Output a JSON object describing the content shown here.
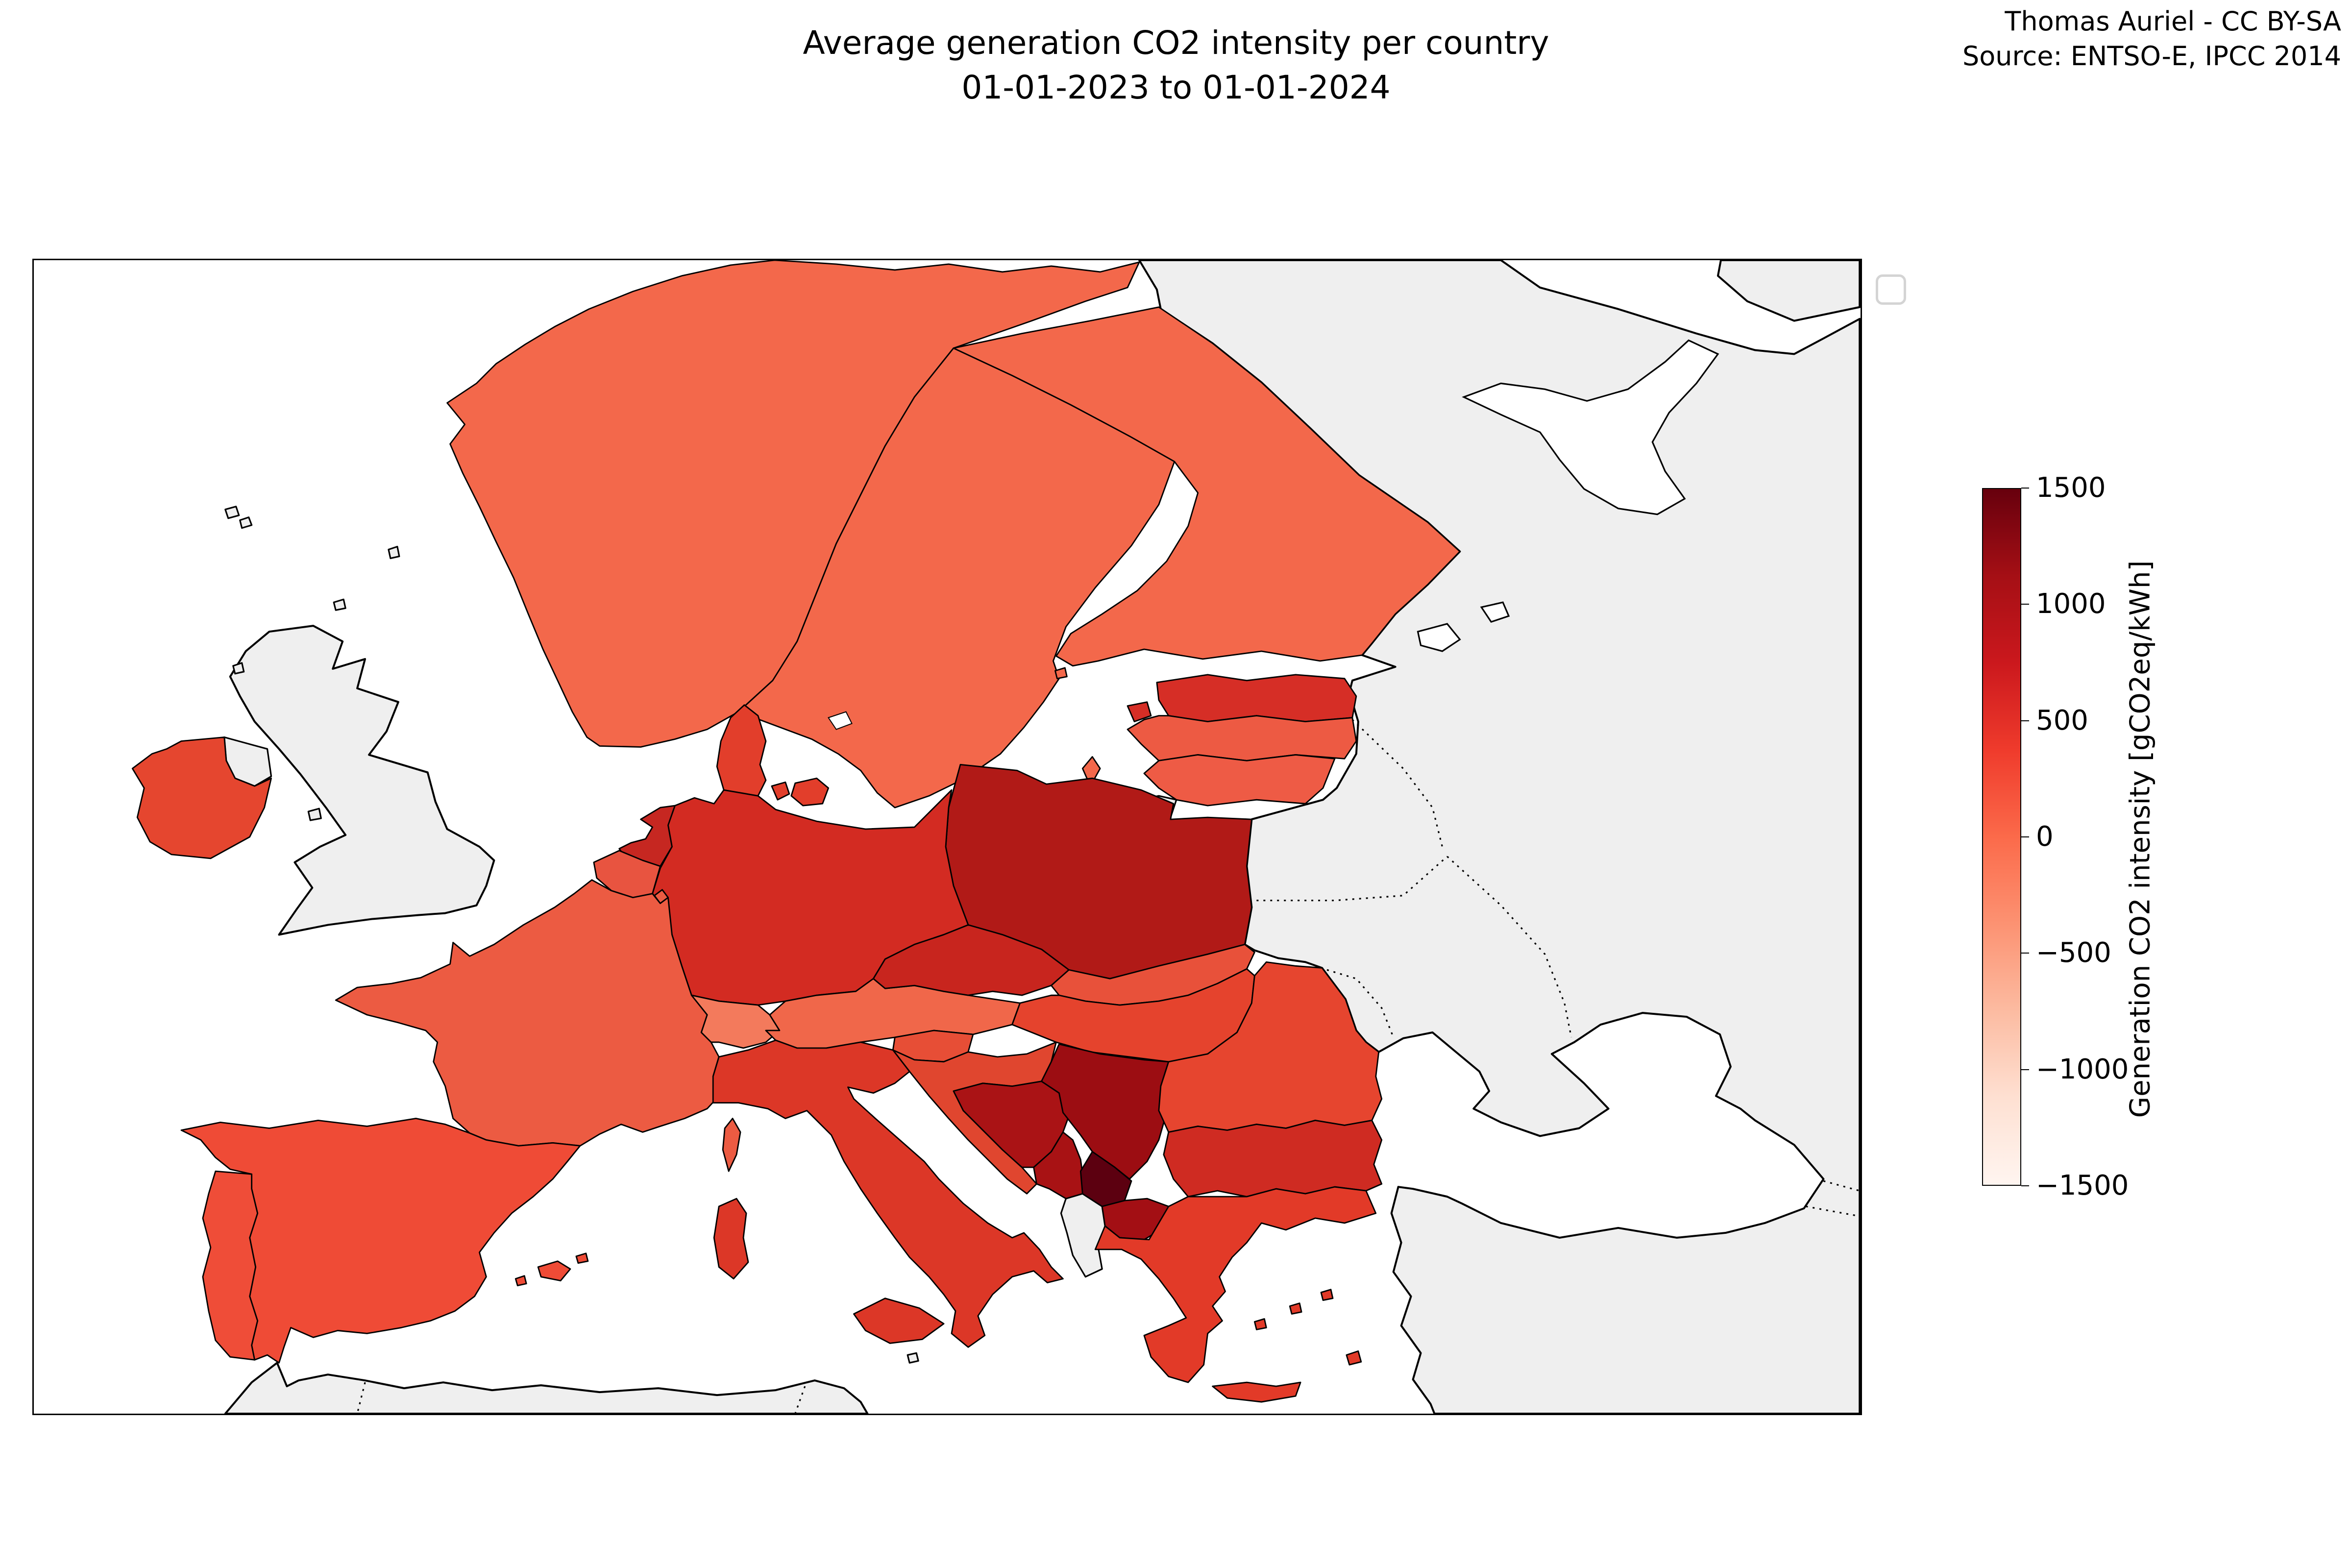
{
  "title": {
    "line1": "Average generation CO2 intensity per country",
    "line2": "01-01-2023 to 01-01-2024"
  },
  "attribution": {
    "line1": "Thomas Auriel - CC BY-SA",
    "line2": "Source: ENTSO-E, IPCC 2014"
  },
  "colorbar": {
    "label": "Generation CO2 intensity [gCO2eq/kWh]",
    "ticks": [
      "1500",
      "1000",
      "500",
      "0",
      "−500",
      "−1000",
      "−1500"
    ],
    "tick_values": [
      1500,
      1000,
      500,
      0,
      -500,
      -1000,
      -1500
    ],
    "min": -1500,
    "max": 1500,
    "gradient_stops": [
      "#fff5f0",
      "#fee0d2",
      "#fcbba1",
      "#fc9272",
      "#fb6a4a",
      "#ef3b2c",
      "#cb181d",
      "#a50f15",
      "#67000d"
    ]
  },
  "chart_data": {
    "type": "heatmap",
    "variant": "choropleth-map-of-europe",
    "title": "Average generation CO2 intensity per country 01-01-2023 to 01-01-2024",
    "unit": "gCO2eq/kWh",
    "colormap": "Reds",
    "scale_range": [
      -1500,
      1500
    ],
    "no_data_color": "#efefef",
    "sea_color": "#ffffff",
    "countries": [
      {
        "code": "NO",
        "name": "Norway",
        "value": 30,
        "color": "#f3684b"
      },
      {
        "code": "SE",
        "name": "Sweden",
        "value": 40,
        "color": "#f3684b"
      },
      {
        "code": "FI",
        "name": "Finland",
        "value": 90,
        "color": "#f3684b"
      },
      {
        "code": "DK",
        "name": "Denmark",
        "value": 180,
        "color": "#e23e2b"
      },
      {
        "code": "EE",
        "name": "Estonia",
        "value": 600,
        "color": "#d62e26"
      },
      {
        "code": "LV",
        "name": "Latvia",
        "value": 160,
        "color": "#ed5a43"
      },
      {
        "code": "LT",
        "name": "Lithuania",
        "value": 170,
        "color": "#ee5b45"
      },
      {
        "code": "PL",
        "name": "Poland",
        "value": 780,
        "color": "#b11a17"
      },
      {
        "code": "DE",
        "name": "Germany",
        "value": 520,
        "color": "#d32b22"
      },
      {
        "code": "NL",
        "name": "Netherlands",
        "value": 620,
        "color": "#c62721"
      },
      {
        "code": "BE",
        "name": "Belgium",
        "value": 170,
        "color": "#e85440"
      },
      {
        "code": "LU",
        "name": "Luxembourg",
        "value": 130,
        "color": "#ec5b42"
      },
      {
        "code": "FR",
        "name": "France",
        "value": 110,
        "color": "#ec5b42"
      },
      {
        "code": "IE",
        "name": "Ireland",
        "value": 300,
        "color": "#e5462f"
      },
      {
        "code": "ES",
        "name": "Spain",
        "value": 220,
        "color": "#ef4b36"
      },
      {
        "code": "PT",
        "name": "Portugal",
        "value": 200,
        "color": "#ef4d38"
      },
      {
        "code": "CH",
        "name": "Switzerland",
        "value": -50,
        "color": "#f37a5c"
      },
      {
        "code": "AT",
        "name": "Austria",
        "value": 60,
        "color": "#f0674a"
      },
      {
        "code": "CZ",
        "name": "Czechia",
        "value": 640,
        "color": "#c8251e"
      },
      {
        "code": "SK",
        "name": "Slovakia",
        "value": 200,
        "color": "#e8513a"
      },
      {
        "code": "HU",
        "name": "Hungary",
        "value": 320,
        "color": "#e5432d"
      },
      {
        "code": "SI",
        "name": "Slovenia",
        "value": 230,
        "color": "#e74e36"
      },
      {
        "code": "HR",
        "name": "Croatia",
        "value": 280,
        "color": "#e0462f"
      },
      {
        "code": "BA",
        "name": "Bosnia and Herzegovina",
        "value": 900,
        "color": "#aa1315"
      },
      {
        "code": "RS",
        "name": "Serbia",
        "value": 1030,
        "color": "#9c0d12"
      },
      {
        "code": "ME",
        "name": "Montenegro",
        "value": 860,
        "color": "#a81214"
      },
      {
        "code": "XK",
        "name": "Kosovo",
        "value": 1420,
        "color": "#5c0010"
      },
      {
        "code": "MK",
        "name": "North Macedonia",
        "value": 950,
        "color": "#a30f14"
      },
      {
        "code": "GR",
        "name": "Greece",
        "value": 350,
        "color": "#e23a28"
      },
      {
        "code": "BG",
        "name": "Bulgaria",
        "value": 580,
        "color": "#cf2b22"
      },
      {
        "code": "RO",
        "name": "Romania",
        "value": 290,
        "color": "#e6452f"
      },
      {
        "code": "IT",
        "name": "Italy",
        "value": 380,
        "color": "#dc3727"
      }
    ],
    "no_data_regions": [
      "United Kingdom",
      "Albania",
      "Moldova",
      "Ukraine",
      "Belarus",
      "Russia",
      "Turkey",
      "Kaliningrad",
      "North Africa",
      "Faroe Islands",
      "Isle of Man",
      "Malta"
    ],
    "legend_position": "right"
  }
}
